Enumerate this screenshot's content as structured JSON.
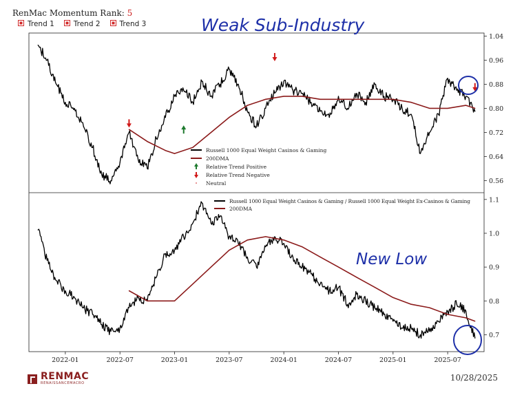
{
  "header": {
    "title_prefix": "RenMac Momentum Rank: ",
    "rank_value": "5",
    "legend": [
      "Trend 1",
      "Trend 2",
      "Trend 3"
    ],
    "legend_color": "#d12a2a"
  },
  "annotations": {
    "top_note": "Weak Sub-Industry",
    "bottom_note": "New Low",
    "ink_color": "#1d2fa8"
  },
  "footer": {
    "logo_name": "RENMAC",
    "logo_sub": "RENAISSANCEMACRO",
    "date": "10/28/2025"
  },
  "chart_data": [
    {
      "type": "line",
      "panel": "top",
      "x_ticks": [],
      "yticks": [
        "0.56",
        "0.64",
        "0.72",
        "0.80",
        "0.88",
        "0.96",
        "1.04"
      ],
      "ylim": [
        0.52,
        1.05
      ],
      "xlim": [
        "2021-09",
        "2025-11"
      ],
      "legend_position": "lower-center",
      "legend": [
        "Russell 1000 Equal Weight Casinos & Gaming",
        "200DMA",
        "Relative Trend Positive",
        "Relative Trend Negative",
        "Neutral"
      ],
      "colors": {
        "price": "#000000",
        "dma": "#8b1a1a",
        "positive": "#1e7a2e",
        "negative": "#d11a1a",
        "neutral": "#e07070"
      },
      "series": [
        {
          "name": "Russell 1000 Equal Weight Casinos & Gaming",
          "x": [
            "2021-10",
            "2021-11",
            "2021-12",
            "2022-01",
            "2022-02",
            "2022-03",
            "2022-04",
            "2022-05",
            "2022-06",
            "2022-07",
            "2022-08",
            "2022-09",
            "2022-10",
            "2022-11",
            "2022-12",
            "2023-01",
            "2023-02",
            "2023-03",
            "2023-04",
            "2023-05",
            "2023-06",
            "2023-07",
            "2023-08",
            "2023-09",
            "2023-10",
            "2023-11",
            "2023-12",
            "2024-01",
            "2024-02",
            "2024-03",
            "2024-04",
            "2024-05",
            "2024-06",
            "2024-07",
            "2024-08",
            "2024-09",
            "2024-10",
            "2024-11",
            "2024-12",
            "2025-01",
            "2025-02",
            "2025-03",
            "2025-04",
            "2025-05",
            "2025-06",
            "2025-07",
            "2025-08",
            "2025-09",
            "2025-10"
          ],
          "values": [
            1.01,
            0.96,
            0.88,
            0.82,
            0.8,
            0.74,
            0.67,
            0.58,
            0.56,
            0.62,
            0.72,
            0.63,
            0.6,
            0.7,
            0.77,
            0.84,
            0.86,
            0.82,
            0.89,
            0.84,
            0.88,
            0.93,
            0.88,
            0.79,
            0.74,
            0.8,
            0.85,
            0.89,
            0.86,
            0.85,
            0.82,
            0.79,
            0.77,
            0.84,
            0.8,
            0.85,
            0.82,
            0.88,
            0.84,
            0.83,
            0.8,
            0.78,
            0.65,
            0.72,
            0.78,
            0.9,
            0.86,
            0.84,
            0.79
          ]
        },
        {
          "name": "200DMA",
          "x": [
            "2022-08",
            "2022-10",
            "2022-12",
            "2023-01",
            "2023-03",
            "2023-05",
            "2023-07",
            "2023-09",
            "2023-11",
            "2024-01",
            "2024-03",
            "2024-05",
            "2024-07",
            "2024-09",
            "2024-11",
            "2025-01",
            "2025-03",
            "2025-05",
            "2025-07",
            "2025-09",
            "2025-10"
          ],
          "values": [
            0.73,
            0.69,
            0.66,
            0.65,
            0.67,
            0.72,
            0.77,
            0.81,
            0.83,
            0.84,
            0.84,
            0.83,
            0.83,
            0.83,
            0.83,
            0.83,
            0.82,
            0.8,
            0.8,
            0.81,
            0.8
          ]
        }
      ],
      "markers": [
        {
          "type": "negative",
          "x": "2022-08",
          "y": 0.75
        },
        {
          "type": "positive",
          "x": "2023-02",
          "y": 0.73
        },
        {
          "type": "negative",
          "x": "2023-12",
          "y": 0.97
        },
        {
          "type": "negative",
          "x": "2025-10",
          "y": 0.87
        }
      ]
    },
    {
      "type": "line",
      "panel": "bottom",
      "x_ticks": [
        "2022-01",
        "2022-07",
        "2023-01",
        "2023-07",
        "2024-01",
        "2024-07",
        "2025-01",
        "2025-07"
      ],
      "yticks": [
        "0.7",
        "0.8",
        "0.9",
        "1.0",
        "1.1"
      ],
      "ylim": [
        0.65,
        1.12
      ],
      "xlim": [
        "2021-09",
        "2025-11"
      ],
      "legend_position": "upper-right",
      "legend": [
        "Russell 1000 Equal Weight Casinos & Gaming / Russell 1000 Equal Weight Ex-Casinos & Gaming",
        "200DMA"
      ],
      "colors": {
        "price": "#000000",
        "dma": "#8b1a1a"
      },
      "series": [
        {
          "name": "Russell 1000 Equal Weight Casinos & Gaming / Russell 1000 Equal Weight Ex-Casinos & Gaming",
          "x": [
            "2021-10",
            "2021-11",
            "2021-12",
            "2022-01",
            "2022-02",
            "2022-03",
            "2022-04",
            "2022-05",
            "2022-06",
            "2022-07",
            "2022-08",
            "2022-09",
            "2022-10",
            "2022-11",
            "2022-12",
            "2023-01",
            "2023-02",
            "2023-03",
            "2023-04",
            "2023-05",
            "2023-06",
            "2023-07",
            "2023-08",
            "2023-09",
            "2023-10",
            "2023-11",
            "2023-12",
            "2024-01",
            "2024-02",
            "2024-03",
            "2024-04",
            "2024-05",
            "2024-06",
            "2024-07",
            "2024-08",
            "2024-09",
            "2024-10",
            "2024-11",
            "2024-12",
            "2025-01",
            "2025-02",
            "2025-03",
            "2025-04",
            "2025-05",
            "2025-06",
            "2025-07",
            "2025-08",
            "2025-09",
            "2025-10"
          ],
          "values": [
            1.01,
            0.92,
            0.86,
            0.83,
            0.81,
            0.78,
            0.76,
            0.73,
            0.71,
            0.72,
            0.78,
            0.81,
            0.8,
            0.87,
            0.94,
            0.95,
            0.99,
            1.03,
            1.09,
            1.03,
            1.05,
            0.99,
            0.97,
            0.93,
            0.9,
            0.96,
            0.99,
            0.97,
            0.93,
            0.9,
            0.88,
            0.85,
            0.83,
            0.84,
            0.79,
            0.82,
            0.8,
            0.78,
            0.76,
            0.74,
            0.72,
            0.72,
            0.7,
            0.71,
            0.74,
            0.77,
            0.79,
            0.77,
            0.69
          ]
        },
        {
          "name": "200DMA",
          "x": [
            "2022-08",
            "2022-10",
            "2022-12",
            "2023-01",
            "2023-03",
            "2023-05",
            "2023-07",
            "2023-09",
            "2023-11",
            "2024-01",
            "2024-03",
            "2024-05",
            "2024-07",
            "2024-09",
            "2024-11",
            "2025-01",
            "2025-03",
            "2025-05",
            "2025-07",
            "2025-09",
            "2025-10"
          ],
          "values": [
            0.83,
            0.8,
            0.8,
            0.8,
            0.85,
            0.9,
            0.95,
            0.98,
            0.99,
            0.98,
            0.96,
            0.93,
            0.9,
            0.87,
            0.84,
            0.81,
            0.79,
            0.78,
            0.76,
            0.75,
            0.74
          ]
        }
      ]
    }
  ]
}
